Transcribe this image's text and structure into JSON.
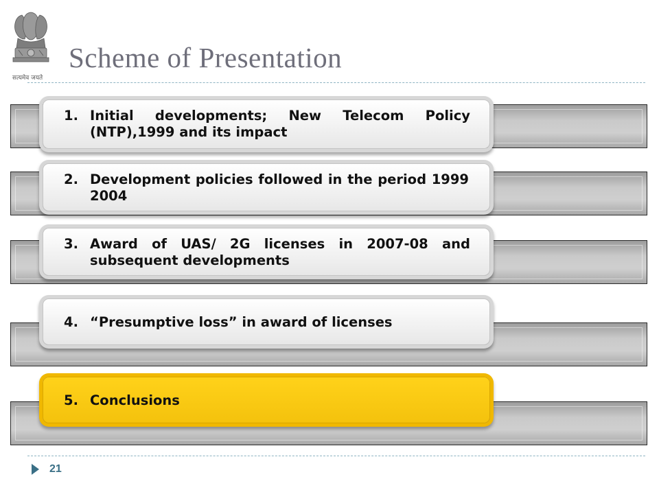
{
  "slide": {
    "title": "Scheme of Presentation",
    "emblem_caption": "सत्यमेव जयते",
    "page_number": "21",
    "highlight_color": "#ffcc00"
  },
  "items": [
    {
      "number": "1.",
      "text": "Initial developments; New Telecom Policy (NTP),1999 and its impact",
      "highlighted": false
    },
    {
      "number": "2.",
      "text": "Development policies followed in the period 1999 2004",
      "highlighted": false
    },
    {
      "number": "3.",
      "text": "Award of UAS/ 2G licenses in 2007-08 and subsequent developments",
      "highlighted": false
    },
    {
      "number": "4.",
      "text": "“Presumptive loss” in award of licenses",
      "highlighted": false
    },
    {
      "number": "5.",
      "text": "Conclusions",
      "highlighted": true
    }
  ]
}
